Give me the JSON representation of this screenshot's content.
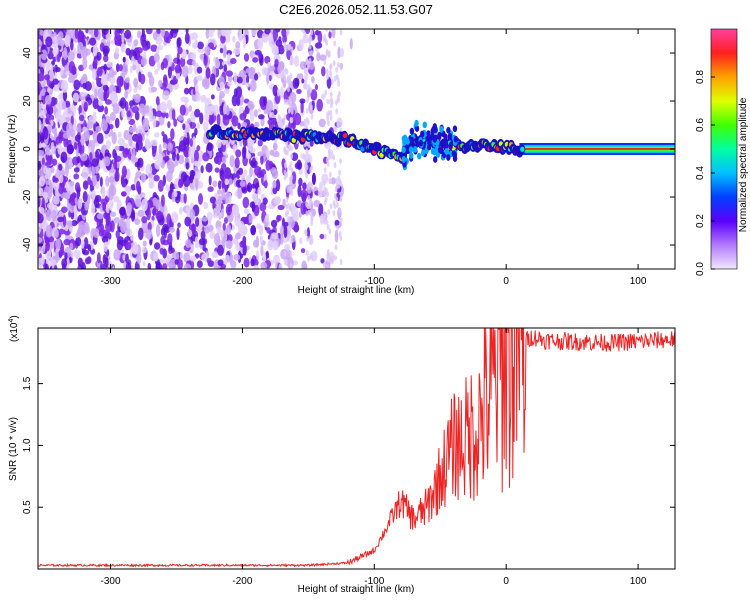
{
  "title": "C2E6.2026.052.11.53.G07",
  "chart_data": [
    {
      "type": "heatmap",
      "xlabel": "Height of straight line (km)",
      "ylabel": "Frequency (Hz)",
      "xlim": [
        -355,
        128
      ],
      "ylim": [
        -50,
        50
      ],
      "xticks": [
        -300,
        -200,
        -100,
        0,
        100
      ],
      "xtick_labels": [
        "-300",
        "-200",
        "-100",
        "0",
        "100"
      ],
      "yticks": [
        -40,
        -20,
        0,
        20,
        40
      ],
      "ytick_labels": [
        "-40",
        "-20",
        "0",
        "20",
        "40"
      ],
      "colorbar": {
        "label": "Normalized spectral amplitude",
        "range": [
          0,
          1
        ],
        "ticks": [
          0.0,
          0.2,
          0.4,
          0.6,
          0.8
        ],
        "tick_labels": [
          "0.0",
          "0.2",
          "0.4",
          "0.6",
          "0.8"
        ]
      },
      "description_points": {
        "noise_region_x": [
          -355,
          -130
        ],
        "signal_trace": [
          {
            "x": -225,
            "f": 7
          },
          {
            "x": -180,
            "f": 6
          },
          {
            "x": -150,
            "f": 5
          },
          {
            "x": -120,
            "f": 4
          },
          {
            "x": -100,
            "f": 0
          },
          {
            "x": -80,
            "f": -3
          },
          {
            "x": -70,
            "f": 4
          },
          {
            "x": -50,
            "f": 2
          },
          {
            "x": -30,
            "f": 1
          },
          {
            "x": -10,
            "f": 1
          },
          {
            "x": 10,
            "f": 0
          },
          {
            "x": 128,
            "f": 0
          }
        ]
      }
    },
    {
      "type": "line",
      "xlabel": "Height of straight line (km)",
      "ylabel": "SNR (10 * v/v)",
      "y_multiplier_label": "(x10",
      "y_multiplier_exp": "4",
      "y_multiplier_close": ")",
      "xlim": [
        -355,
        128
      ],
      "ylim": [
        0,
        1.95
      ],
      "xticks": [
        -300,
        -200,
        -100,
        0,
        100
      ],
      "xtick_labels": [
        "-300",
        "-200",
        "-100",
        "0",
        "100"
      ],
      "yticks": [
        0.5,
        1.0,
        1.5
      ],
      "ytick_labels": [
        "0.5",
        "1.0",
        "1.5"
      ],
      "series": [
        {
          "name": "SNR",
          "color": "#ee2222",
          "x": [
            -355,
            -250,
            -150,
            -120,
            -100,
            -90,
            -80,
            -70,
            -60,
            -50,
            -40,
            -30,
            -20,
            -10,
            0,
            10,
            20,
            30,
            50,
            80,
            100,
            128
          ],
          "y": [
            0.03,
            0.03,
            0.03,
            0.05,
            0.15,
            0.35,
            0.55,
            0.4,
            0.5,
            0.75,
            1.0,
            1.05,
            1.2,
            1.45,
            1.75,
            1.82,
            1.88,
            1.85,
            1.84,
            1.83,
            1.84,
            1.86
          ]
        }
      ]
    }
  ],
  "colors": {
    "signal_line": "#ee2222",
    "noise_purple": "#8a3ae0",
    "trace_center": "#ff2020"
  }
}
